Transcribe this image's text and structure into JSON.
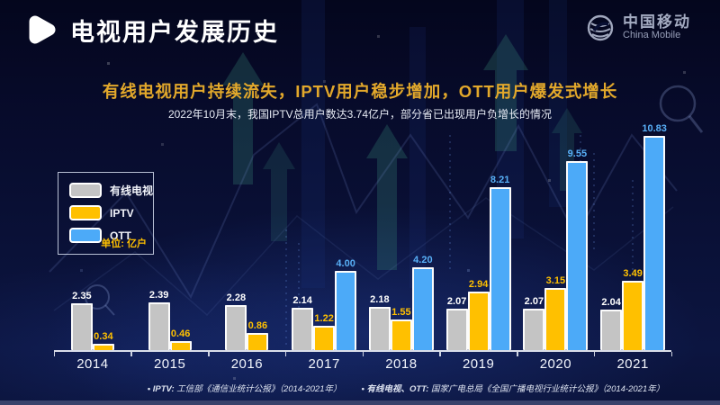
{
  "slide": {
    "title": "电视用户发展历史",
    "headline": "有线电视用户持续流失，IPTV用户稳步增加，OTT用户爆发式增长",
    "subtitle": "2022年10月末，我国IPTV总用户数达3.74亿户，部分省已出现用户负增长的情况",
    "unit_label": "单位: 亿户",
    "logo": {
      "cn": "中国移动",
      "en": "China Mobile"
    }
  },
  "colors": {
    "headline_gold": "#e2a82b",
    "cable_gray": "#c4c4c4",
    "iptv_yellow": "#ffc000",
    "ott_blue": "#4caaf8",
    "ott_label_blue": "#58b0f8",
    "background_navy": "#0a1138"
  },
  "legend": [
    {
      "label": "有线电视",
      "color": "#c4c4c4"
    },
    {
      "label": "IPTV",
      "color": "#ffc000"
    },
    {
      "label": "OTT",
      "color": "#4caaf8"
    }
  ],
  "chart_data": {
    "type": "bar",
    "title": "电视用户发展历史（有线电视 / IPTV / OTT 用户数）",
    "unit": "亿户",
    "categories": [
      "2014",
      "2015",
      "2016",
      "2017",
      "2018",
      "2019",
      "2020",
      "2021"
    ],
    "series": [
      {
        "name": "有线电视",
        "color": "#c4c4c4",
        "label_color": "#ffffff",
        "values": [
          2.35,
          2.39,
          2.28,
          2.14,
          2.18,
          2.07,
          2.07,
          2.04
        ]
      },
      {
        "name": "IPTV",
        "color": "#ffc000",
        "label_color": "#ffc000",
        "values": [
          0.34,
          0.46,
          0.86,
          1.22,
          1.55,
          2.94,
          3.15,
          3.49
        ]
      },
      {
        "name": "OTT",
        "color": "#4caaf8",
        "label_color": "#58b0f8",
        "values": [
          null,
          null,
          null,
          4.0,
          4.2,
          8.21,
          9.55,
          10.83
        ]
      }
    ],
    "ylim": [
      0,
      11.5
    ],
    "value_labels": true,
    "grid": false,
    "legend_position": "upper-left"
  },
  "footer": {
    "sources": [
      {
        "bullet": "•",
        "label": "IPTV:",
        "text": "工信部《通信业统计公报》（2014-2021年）"
      },
      {
        "bullet": "•",
        "label": "有线电视、OTT:",
        "text": "国家广电总局《全国广播电视行业统计公报》（2014-2021年）"
      }
    ]
  }
}
